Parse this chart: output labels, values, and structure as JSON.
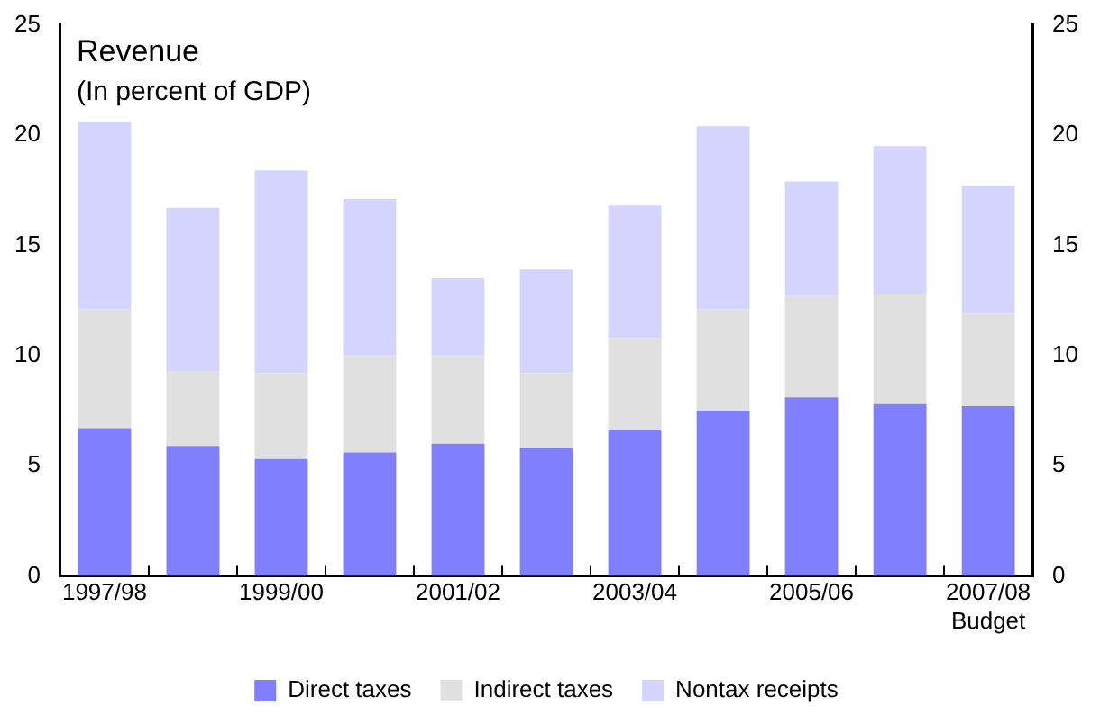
{
  "chart_data": {
    "type": "bar",
    "stacked": true,
    "title": "Revenue",
    "subtitle": "(In percent of GDP)",
    "categories": [
      "1997/98",
      null,
      "1999/00",
      null,
      "2001/02",
      null,
      "2003/04",
      null,
      "2005/06",
      null,
      "2007/08\nBudget"
    ],
    "series": [
      {
        "name": "Direct taxes",
        "color": "#8080ff",
        "values": [
          6.7,
          5.9,
          5.3,
          5.6,
          6.0,
          5.8,
          6.6,
          7.5,
          8.1,
          7.8,
          7.7
        ]
      },
      {
        "name": "Indirect taxes",
        "color": "#e0e0e0",
        "values": [
          5.4,
          3.4,
          3.9,
          4.4,
          4.0,
          3.4,
          4.2,
          4.6,
          4.6,
          5.0,
          4.2
        ]
      },
      {
        "name": "Nontax receipts",
        "color": "#d4d4ff",
        "values": [
          8.5,
          7.4,
          9.2,
          7.1,
          3.5,
          4.7,
          6.0,
          8.3,
          5.2,
          6.7,
          5.8
        ]
      }
    ],
    "ylim": [
      0,
      25
    ],
    "yticks": [
      0,
      5,
      10,
      15,
      20,
      25
    ],
    "y2lim": [
      0,
      25
    ],
    "y2ticks": [
      0,
      5,
      10,
      15,
      20,
      25
    ],
    "grid": false,
    "legend": "bottom"
  }
}
